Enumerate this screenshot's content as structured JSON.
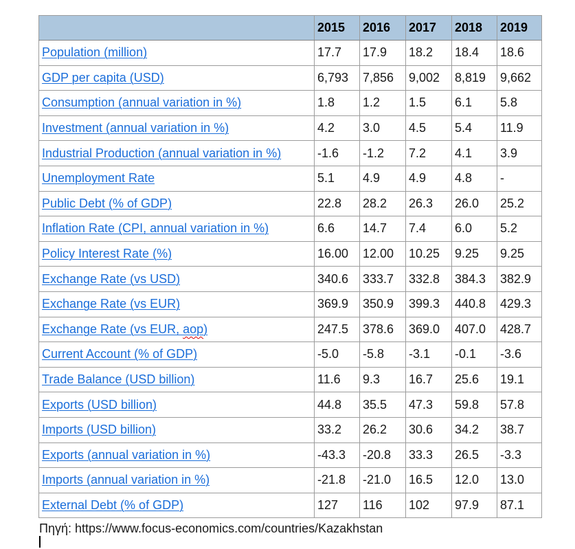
{
  "colors": {
    "header_bg": "#ADC7DE",
    "link": "#1B6EDA",
    "border": "#9C9C9C",
    "border_dark": "#858585",
    "spellcheck": "#E00000"
  },
  "table": {
    "years": [
      "2015",
      "2016",
      "2017",
      "2018",
      "2019"
    ],
    "rows": [
      {
        "label": "Population (million)",
        "values": [
          "17.7",
          "17.9",
          "18.2",
          "18.4",
          "18.6"
        ]
      },
      {
        "label": "GDP per capita (USD)",
        "values": [
          "6,793",
          "7,856",
          "9,002",
          "8,819",
          "9,662"
        ]
      },
      {
        "label": "Consumption (annual variation in %)",
        "values": [
          "1.8",
          "1.2",
          "1.5",
          "6.1",
          "5.8"
        ]
      },
      {
        "label": "Investment (annual variation in %)",
        "values": [
          "4.2",
          "3.0",
          "4.5",
          "5.4",
          "11.9"
        ]
      },
      {
        "label": "Industrial Production (annual variation in %)",
        "values": [
          "-1.6",
          "-1.2",
          "7.2",
          "4.1",
          "3.9"
        ]
      },
      {
        "label": "Unemployment Rate",
        "values": [
          "5.1",
          "4.9",
          "4.9",
          "4.8",
          "-"
        ]
      },
      {
        "label": "Public Debt (% of GDP)",
        "values": [
          "22.8",
          "28.2",
          "26.3",
          "26.0",
          "25.2"
        ]
      },
      {
        "label": "Inflation Rate (CPI, annual variation in %)",
        "values": [
          "6.6",
          "14.7",
          "7.4",
          "6.0",
          "5.2"
        ]
      },
      {
        "label": "Policy Interest Rate (%)",
        "values": [
          "16.00",
          "12.00",
          "10.25",
          "9.25",
          "9.25"
        ]
      },
      {
        "label": "Exchange Rate (vs USD)",
        "values": [
          "340.6",
          "333.7",
          "332.8",
          "384.3",
          "382.9"
        ]
      },
      {
        "label": "Exchange Rate (vs EUR)",
        "values": [
          "369.9",
          "350.9",
          "399.3",
          "440.8",
          "429.3"
        ]
      },
      {
        "label": "Exchange Rate (vs EUR, aop)",
        "spellcheck_word": "aop",
        "values": [
          "247.5",
          "378.6",
          "369.0",
          "407.0",
          "428.7"
        ]
      },
      {
        "label": "Current Account (% of GDP)",
        "values": [
          "-5.0",
          "-5.8",
          "-3.1",
          "-0.1",
          "-3.6"
        ]
      },
      {
        "label": "Trade Balance (USD billion)",
        "values": [
          "11.6",
          "9.3",
          "16.7",
          "25.6",
          "19.1"
        ]
      },
      {
        "label": "Exports (USD billion)",
        "values": [
          "44.8",
          "35.5",
          "47.3",
          "59.8",
          "57.8"
        ]
      },
      {
        "label": "Imports (USD billion)",
        "values": [
          "33.2",
          "26.2",
          "30.6",
          "34.2",
          "38.7"
        ]
      },
      {
        "label": "Exports (annual variation in %)",
        "values": [
          "-43.3",
          "-20.8",
          "33.3",
          "26.5",
          "-3.3"
        ]
      },
      {
        "label": "Imports (annual variation in %)",
        "values": [
          "-21.8",
          "-21.0",
          "16.5",
          "12.0",
          "13.0"
        ]
      },
      {
        "label": "External Debt (% of GDP)",
        "values": [
          "127",
          "116",
          "102",
          "97.9",
          "87.1"
        ]
      }
    ]
  },
  "source_line": "Πηγή: https://www.focus-economics.com/countries/Kazakhstan"
}
